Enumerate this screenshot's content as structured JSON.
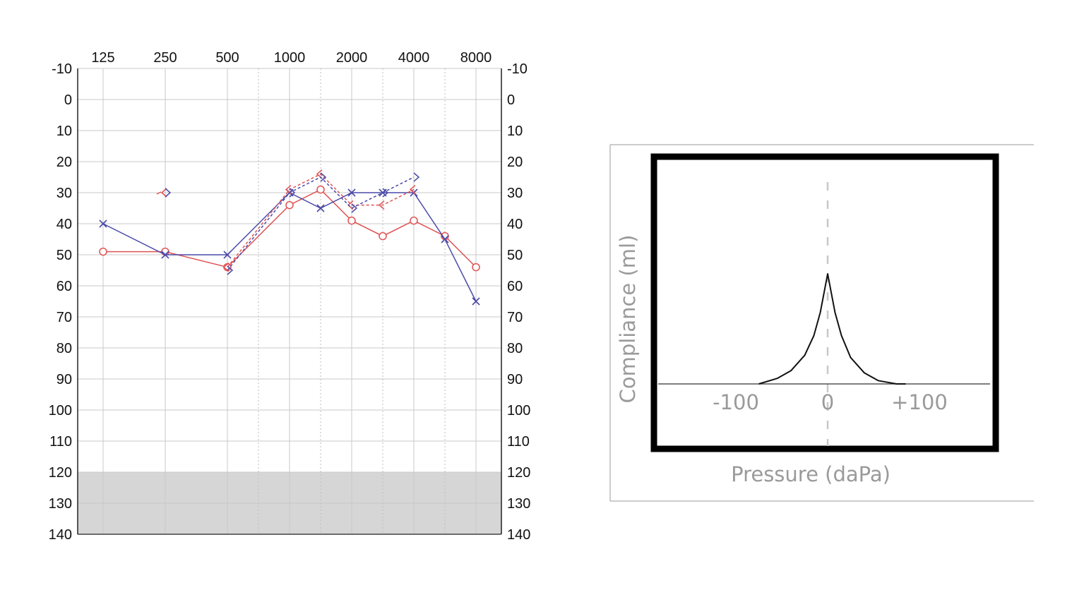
{
  "chart_data": [
    {
      "type": "line",
      "title": "",
      "x_categories": [
        "125",
        "250",
        "500",
        "1000",
        "2000",
        "4000",
        "8000"
      ],
      "x_octave_positions": [
        0,
        1,
        2,
        3,
        4,
        5,
        6
      ],
      "x_interoctave_positions": [
        2.5,
        3.5,
        4.5,
        5.5
      ],
      "y_ticks": [
        "-10",
        "0",
        "10",
        "20",
        "30",
        "40",
        "50",
        "60",
        "70",
        "80",
        "90",
        "100",
        "110",
        "120",
        "130",
        "140"
      ],
      "ylim": [
        -10,
        140
      ],
      "y_inverted": true,
      "shaded_band": [
        120,
        140
      ],
      "colors": {
        "right": "#e05252",
        "left": "#4a4aa8",
        "grid": "#c8c8c8",
        "shade": "#d6d6d6"
      },
      "series": [
        {
          "name": "right air conduction",
          "color": "#e05252",
          "marker": "circle",
          "dash": false,
          "x": [
            0,
            1,
            2,
            3,
            3.5,
            4,
            4.5,
            5,
            5.5,
            6
          ],
          "y": [
            49,
            49,
            54,
            34,
            29,
            39,
            44,
            39,
            44,
            54
          ]
        },
        {
          "name": "left air conduction",
          "color": "#4a4aa8",
          "marker": "x",
          "dash": false,
          "x": [
            0,
            1,
            2,
            3,
            3.5,
            4,
            4.5,
            5,
            5.5,
            6
          ],
          "y": [
            40,
            50,
            50,
            30,
            35,
            30,
            30,
            30,
            45,
            65
          ]
        },
        {
          "name": "right bone conduction",
          "color": "#e05252",
          "marker": "chevron-left",
          "dash": true,
          "x": [
            2,
            3,
            3.5,
            4,
            4.5,
            5
          ],
          "y": [
            54,
            29,
            24,
            34,
            34,
            29
          ]
        },
        {
          "name": "left bone conduction",
          "color": "#4a4aa8",
          "marker": "chevron-right",
          "dash": true,
          "x": [
            2,
            3,
            3.5,
            4,
            4.5,
            5
          ],
          "y": [
            55,
            30,
            25,
            35,
            30,
            25
          ]
        },
        {
          "name": "right bone conduction 250",
          "color": "#e05252",
          "marker": "chevron-left",
          "dash": false,
          "x": [
            1
          ],
          "y": [
            30
          ]
        },
        {
          "name": "left bone conduction 250",
          "color": "#4a4aa8",
          "marker": "chevron-right",
          "dash": false,
          "x": [
            1
          ],
          "y": [
            30
          ]
        }
      ]
    },
    {
      "type": "line",
      "title": "",
      "xlabel": "Pressure (daPa)",
      "ylabel": "Compliance (ml)",
      "x_tick_labels": [
        "-100",
        "0",
        "+100"
      ],
      "x_tick_values": [
        -100,
        0,
        100
      ],
      "xlim": [
        -190,
        170
      ],
      "peak_pressure": 0,
      "series": [
        {
          "name": "tympanogram",
          "x": [
            -75,
            -55,
            -40,
            -25,
            -15,
            -8,
            0,
            8,
            15,
            25,
            40,
            55,
            75,
            85
          ],
          "y": [
            0.0,
            0.05,
            0.12,
            0.26,
            0.44,
            0.65,
            1.0,
            0.65,
            0.44,
            0.24,
            0.1,
            0.03,
            0.0,
            0.0
          ]
        }
      ]
    }
  ]
}
